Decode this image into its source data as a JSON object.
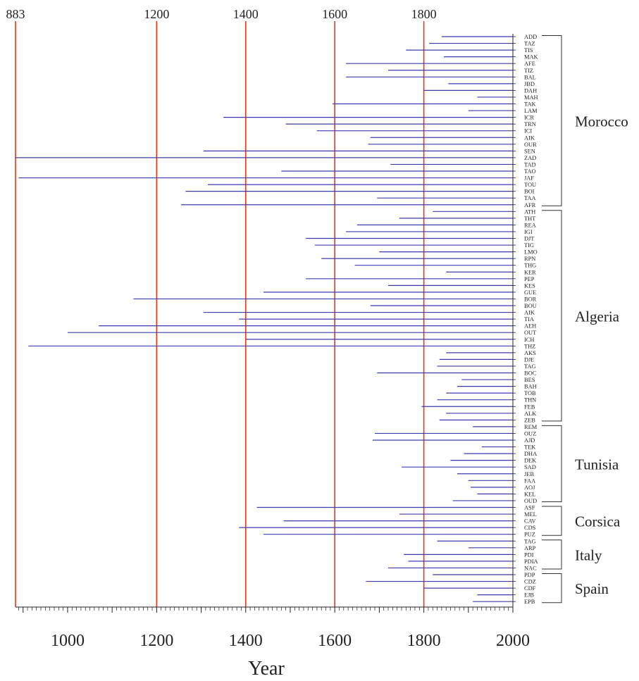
{
  "chart_data": {
    "type": "bar",
    "orientation": "horizontal",
    "xlabel": "Year",
    "xlim": [
      883,
      2000
    ],
    "x_ticks_bottom": [
      1000,
      1200,
      1400,
      1600,
      1800,
      2000
    ],
    "reference_lines": [
      {
        "label": "883",
        "x": 883
      },
      {
        "label": "1200",
        "x": 1200
      },
      {
        "label": "1400",
        "x": 1400
      },
      {
        "label": "1600",
        "x": 1600
      },
      {
        "label": "1800",
        "x": 1800
      }
    ],
    "series_color": "#3b3bb0",
    "ref_color": "#e03a1e",
    "groups": [
      {
        "name": "Morocco",
        "sites": [
          {
            "code": "ADD",
            "start": 1840
          },
          {
            "code": "TAZ",
            "start": 1812
          },
          {
            "code": "TIS",
            "start": 1760
          },
          {
            "code": "MAK",
            "start": 1845
          },
          {
            "code": "AFE",
            "start": 1625
          },
          {
            "code": "TIZ",
            "start": 1720
          },
          {
            "code": "BAL",
            "start": 1625
          },
          {
            "code": "JBD",
            "start": 1855
          },
          {
            "code": "DAH",
            "start": 1800
          },
          {
            "code": "MAH",
            "start": 1920
          },
          {
            "code": "TAK",
            "start": 1595
          },
          {
            "code": "LAM",
            "start": 1900
          },
          {
            "code": "ICR",
            "start": 1350
          },
          {
            "code": "TRN",
            "start": 1490
          },
          {
            "code": "ICI",
            "start": 1560
          },
          {
            "code": "AIK",
            "start": 1680
          },
          {
            "code": "OUR",
            "start": 1675
          },
          {
            "code": "SEN",
            "start": 1305
          },
          {
            "code": "ZAD",
            "start": 883
          },
          {
            "code": "TAD",
            "start": 1725
          },
          {
            "code": "TAO",
            "start": 1480
          },
          {
            "code": "JAF",
            "start": 890
          },
          {
            "code": "TOU",
            "start": 1315
          },
          {
            "code": "BOI",
            "start": 1265
          },
          {
            "code": "TAA",
            "start": 1695
          },
          {
            "code": "AFR",
            "start": 1255
          }
        ]
      },
      {
        "name": "Algeria",
        "sites": [
          {
            "code": "ATH",
            "start": 1820
          },
          {
            "code": "THT",
            "start": 1745
          },
          {
            "code": "REA",
            "start": 1650
          },
          {
            "code": "IGI",
            "start": 1625
          },
          {
            "code": "DJT",
            "start": 1535
          },
          {
            "code": "TIG",
            "start": 1555
          },
          {
            "code": "LMO",
            "start": 1700
          },
          {
            "code": "RPN",
            "start": 1570
          },
          {
            "code": "THG",
            "start": 1645
          },
          {
            "code": "KER",
            "start": 1850
          },
          {
            "code": "PEP",
            "start": 1535
          },
          {
            "code": "KES",
            "start": 1720
          },
          {
            "code": "GUE",
            "start": 1440
          },
          {
            "code": "BOR",
            "start": 1148
          },
          {
            "code": "BOU",
            "start": 1680
          },
          {
            "code": "AIK",
            "start": 1305
          },
          {
            "code": "TIA",
            "start": 1385
          },
          {
            "code": "AEH",
            "start": 1070
          },
          {
            "code": "OUT",
            "start": 1000
          },
          {
            "code": "ICH",
            "start": 1400
          },
          {
            "code": "THZ",
            "start": 912
          },
          {
            "code": "AKS",
            "start": 1850
          },
          {
            "code": "DJE",
            "start": 1835
          },
          {
            "code": "TAG",
            "start": 1830
          },
          {
            "code": "BOC",
            "start": 1695
          },
          {
            "code": "BES",
            "start": 1885
          },
          {
            "code": "BAH",
            "start": 1875
          },
          {
            "code": "TOB",
            "start": 1850
          },
          {
            "code": "THN",
            "start": 1830
          },
          {
            "code": "FEB",
            "start": 1795
          },
          {
            "code": "ALK",
            "start": 1850
          },
          {
            "code": "ZEB",
            "start": 1835
          }
        ]
      },
      {
        "name": "Tunisia",
        "sites": [
          {
            "code": "REM",
            "start": 1910
          },
          {
            "code": "OUZ",
            "start": 1690
          },
          {
            "code": "AJD",
            "start": 1685
          },
          {
            "code": "TEK",
            "start": 1930
          },
          {
            "code": "DHA",
            "start": 1890
          },
          {
            "code": "DEK",
            "start": 1860
          },
          {
            "code": "SAD",
            "start": 1750
          },
          {
            "code": "JEB",
            "start": 1875
          },
          {
            "code": "FAA",
            "start": 1900
          },
          {
            "code": "AOJ",
            "start": 1905
          },
          {
            "code": "KEL",
            "start": 1920
          },
          {
            "code": "OUD",
            "start": 1865
          }
        ]
      },
      {
        "name": "Corsica",
        "sites": [
          {
            "code": "ASF",
            "start": 1425
          },
          {
            "code": "MEL",
            "start": 1745
          },
          {
            "code": "CAV",
            "start": 1485
          },
          {
            "code": "CDS",
            "start": 1385
          },
          {
            "code": "PUZ",
            "start": 1440
          }
        ]
      },
      {
        "name": "Italy",
        "sites": [
          {
            "code": "TAG",
            "start": 1830
          },
          {
            "code": "ARP",
            "start": 1900
          },
          {
            "code": "PDI",
            "start": 1755
          },
          {
            "code": "PDIA",
            "start": 1765
          },
          {
            "code": "NAC",
            "start": 1720
          }
        ]
      },
      {
        "name": "Spain",
        "sites": [
          {
            "code": "PDP",
            "start": 1820
          },
          {
            "code": "CDZ",
            "start": 1670
          },
          {
            "code": "CDF",
            "start": 1800
          },
          {
            "code": "EJB",
            "start": 1920
          },
          {
            "code": "EPB",
            "start": 1910
          }
        ]
      }
    ]
  }
}
